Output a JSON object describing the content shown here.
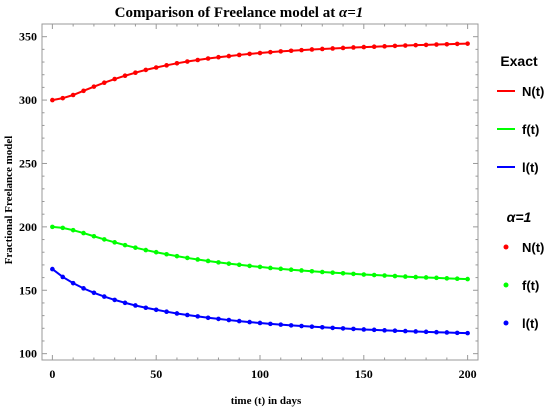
{
  "chart_data": {
    "type": "line",
    "title_prefix": "Comparison of Freelance model at ",
    "title_symbol": "α=1",
    "xlabel": "time (t) in days",
    "ylabel": "Fractional Freelance model",
    "xlim": [
      -5,
      205
    ],
    "ylim": [
      95,
      360
    ],
    "x_ticks": [
      0,
      50,
      100,
      150,
      200
    ],
    "y_ticks": [
      100,
      150,
      200,
      250,
      300,
      350
    ],
    "grid": false,
    "legend_position": "right",
    "legend_groups": [
      {
        "title": "Exact",
        "style": "line",
        "entries": [
          "N(t)",
          "f(t)",
          "l(t)"
        ]
      },
      {
        "title": "α=1",
        "style": "marker",
        "entries": [
          "N(t)",
          "f(t)",
          "l(t)"
        ]
      }
    ],
    "x": [
      0,
      5,
      10,
      15,
      20,
      25,
      30,
      35,
      40,
      45,
      50,
      55,
      60,
      65,
      70,
      75,
      80,
      85,
      90,
      95,
      100,
      105,
      110,
      115,
      120,
      125,
      130,
      135,
      140,
      145,
      150,
      155,
      160,
      165,
      170,
      175,
      180,
      185,
      190,
      195,
      200
    ],
    "series": [
      {
        "name": "N(t)",
        "color": "#ff0000",
        "values": [
          300,
          301.5,
          304.0,
          307.3,
          310.6,
          313.7,
          316.6,
          319.2,
          321.6,
          323.8,
          325.7,
          327.4,
          329.0,
          330.4,
          331.6,
          332.8,
          333.8,
          334.7,
          335.6,
          336.4,
          337.1,
          337.8,
          338.4,
          338.9,
          339.4,
          339.9,
          340.3,
          340.7,
          341.1,
          341.5,
          341.8,
          342.1,
          342.4,
          342.7,
          343.0,
          343.3,
          343.5,
          343.8,
          344.0,
          344.3,
          344.5
        ]
      },
      {
        "name": "f(t)",
        "color": "#00ff00",
        "values": [
          200,
          199.2,
          197.4,
          195.1,
          192.6,
          190.1,
          187.8,
          185.6,
          183.6,
          181.7,
          180.0,
          178.4,
          176.9,
          175.5,
          174.3,
          173.1,
          172.0,
          171.0,
          170.1,
          169.2,
          168.4,
          167.6,
          166.9,
          166.2,
          165.6,
          165.0,
          164.4,
          163.9,
          163.4,
          162.9,
          162.4,
          162.0,
          161.6,
          161.2,
          160.8,
          160.4,
          160.1,
          159.8,
          159.4,
          159.1,
          158.8
        ]
      },
      {
        "name": "l(t)",
        "color": "#0000ff",
        "values": [
          166.7,
          160.5,
          155.6,
          151.5,
          148.0,
          145.0,
          142.4,
          140.1,
          138.0,
          136.2,
          134.6,
          133.1,
          131.7,
          130.5,
          129.4,
          128.3,
          127.4,
          126.5,
          125.7,
          124.9,
          124.2,
          123.5,
          122.9,
          122.3,
          121.8,
          121.3,
          120.8,
          120.3,
          119.9,
          119.5,
          119.1,
          118.8,
          118.4,
          118.1,
          117.8,
          117.5,
          117.2,
          116.9,
          116.7,
          116.4,
          116.2
        ]
      }
    ]
  }
}
